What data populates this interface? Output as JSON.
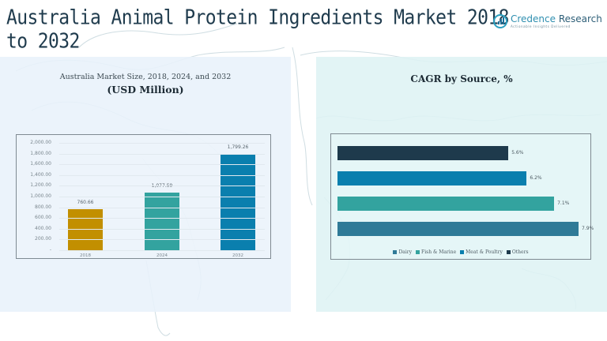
{
  "page": {
    "title": "Australia Animal Protein Ingredients Market 2018 to 2032",
    "logo": {
      "name_part1": "Credence",
      "name_part2": " Research",
      "tagline": "Actionable Insights Delivered"
    }
  },
  "left_panel": {
    "subtitle": "Australia Market Size, 2018, 2024, and 2032",
    "units": "(USD Million)"
  },
  "right_panel": {
    "title": "CAGR by Source, %"
  },
  "colors": {
    "bar_2018": "#c28f00",
    "bar_2024": "#33a39f",
    "bar_2032": "#0a7fae",
    "others": "#1e3a4c",
    "meat_poultry": "#0a7fae",
    "fish_marine": "#33a39f",
    "dairy": "#2f7a97"
  },
  "chart_data": [
    {
      "type": "bar",
      "title": "Australia Market Size, 2018, 2024, and 2032",
      "subtitle": "(USD Million)",
      "categories": [
        "2018",
        "2024",
        "2032"
      ],
      "values": [
        760.66,
        1077.59,
        1799.26
      ],
      "value_labels": [
        "760.66",
        "1,077.59",
        "1,799.26"
      ],
      "xlabel": "",
      "ylabel": "",
      "ylim": [
        0,
        2000
      ],
      "y_ticks": [
        "2,000.00",
        "1,800.00",
        "1,600.00",
        "1,400.00",
        "1,200.00",
        "1,000.00",
        "800.00",
        "600.00",
        "400.00",
        "200.00",
        "-"
      ],
      "grid": true,
      "legend": null
    },
    {
      "type": "bar",
      "orientation": "horizontal",
      "title": "CAGR by Source, %",
      "categories": [
        "Others",
        "Meat & Poultry",
        "Fish & Marine",
        "Dairy"
      ],
      "values": [
        5.6,
        6.2,
        7.1,
        7.9
      ],
      "value_labels": [
        "5.6%",
        "6.2%",
        "7.1%",
        "7.9%"
      ],
      "legend": [
        "Dairy",
        "Fish & Marine",
        "Meat & Poultry",
        "Others"
      ],
      "legend_position": "bottom",
      "grid": false
    }
  ]
}
